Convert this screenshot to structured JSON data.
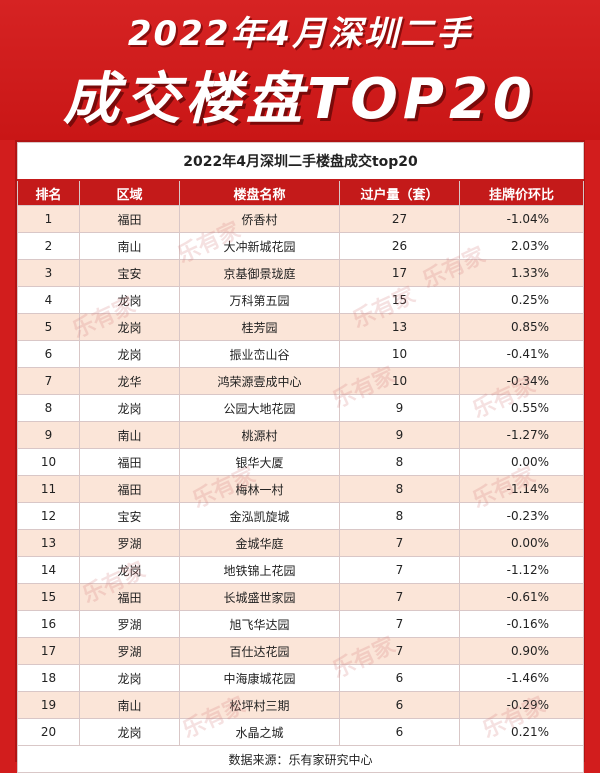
{
  "hero": {
    "line1": "2022年4月深圳二手",
    "line2": "成交楼盘TOP20"
  },
  "table": {
    "title": "2022年4月深圳二手楼盘成交top20",
    "headers": [
      "排名",
      "区域",
      "楼盘名称",
      "过户量（套）",
      "挂牌价环比"
    ],
    "rows": [
      [
        "1",
        "福田",
        "侨香村",
        "27",
        "-1.04%"
      ],
      [
        "2",
        "南山",
        "大冲新城花园",
        "26",
        "2.03%"
      ],
      [
        "3",
        "宝安",
        "京基御景珑庭",
        "17",
        "1.33%"
      ],
      [
        "4",
        "龙岗",
        "万科第五园",
        "15",
        "0.25%"
      ],
      [
        "5",
        "龙岗",
        "桂芳园",
        "13",
        "0.85%"
      ],
      [
        "6",
        "龙岗",
        "振业峦山谷",
        "10",
        "-0.41%"
      ],
      [
        "7",
        "龙华",
        "鸿荣源壹成中心",
        "10",
        "-0.34%"
      ],
      [
        "8",
        "龙岗",
        "公园大地花园",
        "9",
        "0.55%"
      ],
      [
        "9",
        "南山",
        "桃源村",
        "9",
        "-1.27%"
      ],
      [
        "10",
        "福田",
        "银华大厦",
        "8",
        "0.00%"
      ],
      [
        "11",
        "福田",
        "梅林一村",
        "8",
        "-1.14%"
      ],
      [
        "12",
        "宝安",
        "金泓凯旋城",
        "8",
        "-0.23%"
      ],
      [
        "13",
        "罗湖",
        "金城华庭",
        "7",
        "0.00%"
      ],
      [
        "14",
        "龙岗",
        "地铁锦上花园",
        "7",
        "-1.12%"
      ],
      [
        "15",
        "福田",
        "长城盛世家园",
        "7",
        "-0.61%"
      ],
      [
        "16",
        "罗湖",
        "旭飞华达园",
        "7",
        "-0.16%"
      ],
      [
        "17",
        "罗湖",
        "百仕达花园",
        "7",
        "0.90%"
      ],
      [
        "18",
        "龙岗",
        "中海康城花园",
        "6",
        "-1.46%"
      ],
      [
        "19",
        "南山",
        "松坪村三期",
        "6",
        "-0.29%"
      ],
      [
        "20",
        "龙岗",
        "水晶之城",
        "6",
        "0.21%"
      ]
    ],
    "source": "数据来源：乐有家研究中心"
  },
  "watermark": "乐有家",
  "colors": {
    "brand_red": "#d21d1d",
    "header_red": "#c41a1a",
    "row_stripe": "#fbe5d8"
  }
}
